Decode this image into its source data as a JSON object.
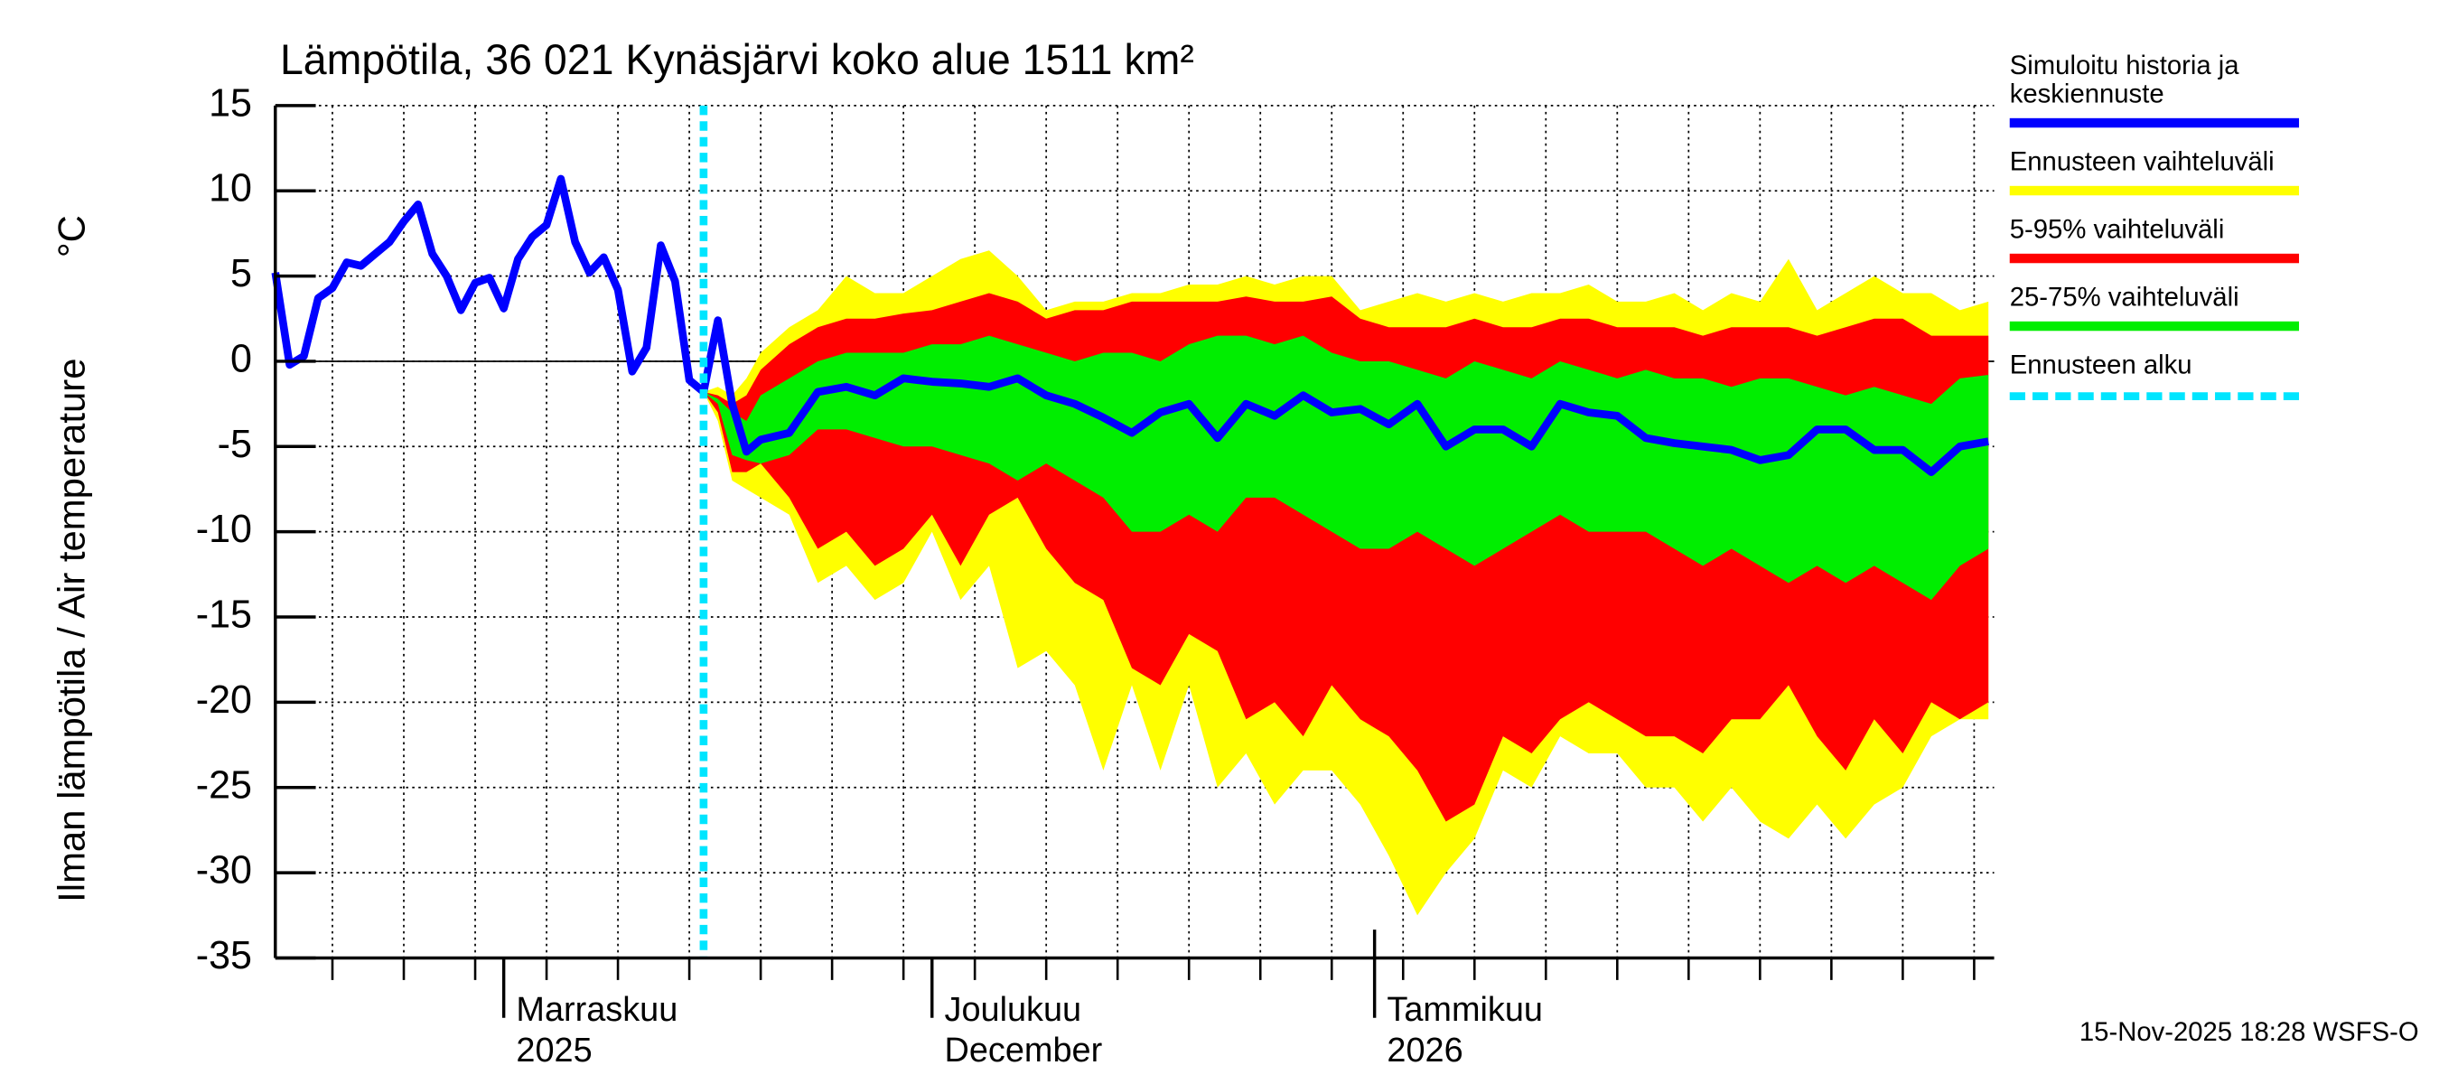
{
  "chart_data": {
    "type": "line",
    "title": "Lämpötila, 36 021 Kynäsjärvi koko alue 1511 km²",
    "ylabel": "Ilman lämpötila / Air temperature",
    "yunit": "°C",
    "footer": "15-Nov-2025 18:28 WSFS-O",
    "x": [
      0,
      1,
      2,
      3,
      4,
      5,
      6,
      7,
      8,
      9,
      10,
      11,
      12,
      13,
      14,
      15,
      16,
      17,
      18,
      19,
      20,
      21,
      22,
      23,
      24,
      25,
      26,
      27,
      28,
      29,
      30,
      31,
      32,
      33,
      34,
      36,
      38,
      40,
      42,
      44,
      46,
      48,
      50,
      52,
      54,
      56,
      58,
      60,
      62,
      64,
      66,
      68,
      70,
      72,
      74,
      76,
      78,
      80,
      82,
      84,
      86,
      88,
      90,
      92,
      94,
      96,
      98,
      100,
      102,
      104,
      106,
      108,
      110,
      112,
      114,
      116,
      118,
      120
    ],
    "xlim": [
      0,
      120.4
    ],
    "xticks": [
      {
        "value": 16,
        "label": [
          "Marraskuu",
          "2025"
        ]
      },
      {
        "value": 46,
        "label": [
          "Joulukuu",
          "December"
        ]
      },
      {
        "value": 77,
        "label": [
          "Tammikuu",
          "2026"
        ]
      }
    ],
    "xgrid": [
      4,
      9,
      14,
      19,
      24,
      29,
      34,
      39,
      44,
      49,
      54,
      59,
      64,
      69,
      74,
      79,
      84,
      89,
      94,
      99,
      104,
      109,
      114,
      119
    ],
    "ylim": [
      -35,
      15
    ],
    "yticks": [
      15,
      10,
      5,
      0,
      -5,
      -10,
      -15,
      -20,
      -25,
      -30,
      -35
    ],
    "grid": true,
    "series": [
      {
        "name": "Simuloitu historia ja keskiennuste",
        "color": "#0000ff",
        "values": [
          5.2,
          -0.2,
          0.3,
          3.7,
          4.3,
          5.8,
          5.6,
          6.3,
          7.0,
          8.2,
          9.2,
          6.3,
          5.0,
          3.0,
          4.6,
          4.9,
          3.1,
          6.0,
          7.3,
          8.0,
          10.7,
          7.0,
          5.2,
          6.1,
          4.2,
          -0.6,
          0.8,
          6.8,
          4.7,
          -1.1,
          -1.8,
          2.4,
          -2.5,
          -5.3,
          -4.6,
          -4.2,
          -1.8,
          -1.5,
          -2.0,
          -1.0,
          -1.2,
          -1.3,
          -1.5,
          -1.0,
          -2.0,
          -2.5,
          -3.3,
          -4.2,
          -3.0,
          -2.5,
          -4.5,
          -2.5,
          -3.2,
          -2.0,
          -3.0,
          -2.8,
          -3.7,
          -2.5,
          -5.0,
          -4.0,
          -4.0,
          -5.0,
          -2.5,
          -3.0,
          -3.2,
          -4.5,
          -4.8,
          -5.0,
          -5.2,
          -5.8,
          -5.5,
          -4.0,
          -4.0,
          -5.2,
          -5.2,
          -6.5,
          -5.0,
          -4.7
        ]
      },
      {
        "name": "Ennusteen vaihteluväli",
        "color": "#ffff00",
        "high": [
          null,
          null,
          null,
          null,
          null,
          null,
          null,
          null,
          null,
          null,
          null,
          null,
          null,
          null,
          null,
          null,
          null,
          null,
          null,
          null,
          null,
          null,
          null,
          null,
          null,
          null,
          null,
          null,
          null,
          null,
          -1.8,
          -1.5,
          -2,
          -1,
          0.5,
          2,
          3,
          5,
          4,
          4,
          5,
          6,
          6.5,
          5,
          3,
          3.5,
          3.5,
          4,
          4,
          4.5,
          4.5,
          5,
          4.5,
          5,
          5,
          3,
          3.5,
          4,
          3.5,
          4,
          3.5,
          4,
          4,
          4.5,
          3.5,
          3.5,
          4,
          3,
          4,
          3.5,
          6,
          3,
          4,
          5,
          4,
          4,
          3,
          3.5
        ],
        "low": [
          null,
          null,
          null,
          null,
          null,
          null,
          null,
          null,
          null,
          null,
          null,
          null,
          null,
          null,
          null,
          null,
          null,
          null,
          null,
          null,
          null,
          null,
          null,
          null,
          null,
          null,
          null,
          null,
          null,
          null,
          -1.8,
          -3.5,
          -7,
          -7.5,
          -8,
          -9,
          -13,
          -12,
          -14,
          -13,
          -10,
          -14,
          -12,
          -18,
          -17,
          -19,
          -24,
          -19,
          -24,
          -19,
          -25,
          -23,
          -26,
          -24,
          -24,
          -26,
          -29,
          -32.5,
          -30,
          -28,
          -24,
          -25,
          -22,
          -23,
          -23,
          -25,
          -25,
          -27,
          -25,
          -27,
          -28,
          -26,
          -28,
          -26,
          -25,
          -22,
          -21,
          -21
        ]
      },
      {
        "name": "5-95% vaihteluväli",
        "color": "#ff0000",
        "high": [
          null,
          null,
          null,
          null,
          null,
          null,
          null,
          null,
          null,
          null,
          null,
          null,
          null,
          null,
          null,
          null,
          null,
          null,
          null,
          null,
          null,
          null,
          null,
          null,
          null,
          null,
          null,
          null,
          null,
          null,
          -1.8,
          -2,
          -2.5,
          -2,
          -0.5,
          1,
          2,
          2.5,
          2.5,
          2.8,
          3,
          3.5,
          4,
          3.5,
          2.5,
          3,
          3,
          3.5,
          3.5,
          3.5,
          3.5,
          3.8,
          3.5,
          3.5,
          3.8,
          2.5,
          2,
          2,
          2,
          2.5,
          2,
          2,
          2.5,
          2.5,
          2,
          2,
          2,
          1.5,
          2,
          2,
          2,
          1.5,
          2,
          2.5,
          2.5,
          1.5,
          1.5,
          1.5
        ],
        "low": [
          null,
          null,
          null,
          null,
          null,
          null,
          null,
          null,
          null,
          null,
          null,
          null,
          null,
          null,
          null,
          null,
          null,
          null,
          null,
          null,
          null,
          null,
          null,
          null,
          null,
          null,
          null,
          null,
          null,
          null,
          -1.8,
          -3,
          -6.5,
          -6.5,
          -6,
          -8,
          -11,
          -10,
          -12,
          -11,
          -9,
          -12,
          -9,
          -8,
          -11,
          -13,
          -14,
          -18,
          -19,
          -16,
          -17,
          -21,
          -20,
          -22,
          -19,
          -21,
          -22,
          -24,
          -27,
          -26,
          -22,
          -23,
          -21,
          -20,
          -21,
          -22,
          -22,
          -23,
          -21,
          -21,
          -19,
          -22,
          -24,
          -21,
          -23,
          -20,
          -21,
          -20
        ]
      },
      {
        "name": "25-75% vaihteluväli",
        "color": "#00ee00",
        "high": [
          null,
          null,
          null,
          null,
          null,
          null,
          null,
          null,
          null,
          null,
          null,
          null,
          null,
          null,
          null,
          null,
          null,
          null,
          null,
          null,
          null,
          null,
          null,
          null,
          null,
          null,
          null,
          null,
          null,
          null,
          -1.8,
          -2.2,
          -3,
          -3.5,
          -2,
          -1,
          0,
          0.5,
          0.5,
          0.5,
          1,
          1,
          1.5,
          1,
          0.5,
          0,
          0.5,
          0.5,
          0,
          1,
          1.5,
          1.5,
          1,
          1.5,
          0.5,
          0,
          0,
          -0.5,
          -1,
          0,
          -0.5,
          -1,
          0,
          -0.5,
          -1,
          -0.5,
          -1,
          -1,
          -1.5,
          -1,
          -1,
          -1.5,
          -2,
          -1.5,
          -2,
          -2.5,
          -1,
          -0.8
        ],
        "low": [
          null,
          null,
          null,
          null,
          null,
          null,
          null,
          null,
          null,
          null,
          null,
          null,
          null,
          null,
          null,
          null,
          null,
          null,
          null,
          null,
          null,
          null,
          null,
          null,
          null,
          null,
          null,
          null,
          null,
          null,
          -1.8,
          -2.5,
          -5.5,
          -5.8,
          -6,
          -5.5,
          -4,
          -4,
          -4.5,
          -5,
          -5,
          -5.5,
          -6,
          -7,
          -6,
          -7,
          -8,
          -10,
          -10,
          -9,
          -10,
          -8,
          -8,
          -9,
          -10,
          -11,
          -11,
          -10,
          -11,
          -12,
          -11,
          -10,
          -9,
          -10,
          -10,
          -10,
          -11,
          -12,
          -11,
          -12,
          -13,
          -12,
          -13,
          -12,
          -13,
          -14,
          -12,
          -11
        ]
      }
    ],
    "forecast_start": {
      "name": "Ennusteen alku",
      "color": "#00e5ff",
      "x": 30
    }
  }
}
